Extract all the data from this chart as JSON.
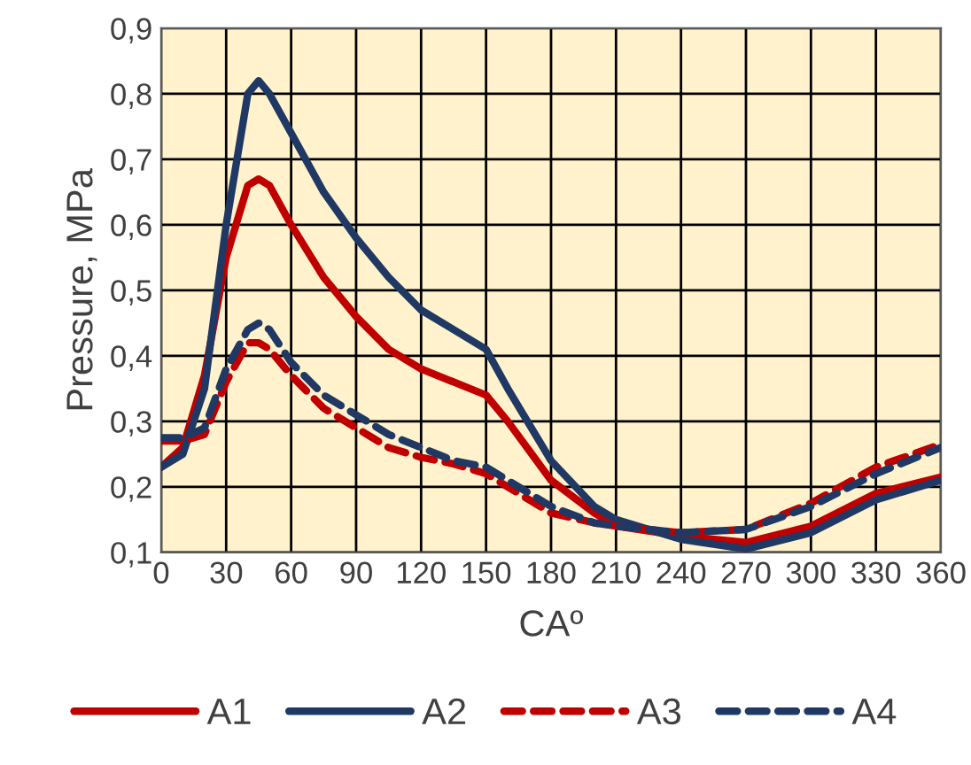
{
  "chart_data": {
    "type": "line",
    "xlabel": "CAº",
    "ylabel": "Pressure, MPa",
    "xlim": [
      0,
      360
    ],
    "xticks": [
      0,
      30,
      60,
      90,
      120,
      150,
      180,
      210,
      240,
      270,
      300,
      330,
      360
    ],
    "ylim": [
      0.1,
      0.9
    ],
    "yticks": [
      {
        "value": 0.1,
        "label": "0,1"
      },
      {
        "value": 0.2,
        "label": "0,2"
      },
      {
        "value": 0.3,
        "label": "0,3"
      },
      {
        "value": 0.4,
        "label": "0,4"
      },
      {
        "value": 0.5,
        "label": "0,5"
      },
      {
        "value": 0.6,
        "label": "0,6"
      },
      {
        "value": 0.7,
        "label": "0,7"
      },
      {
        "value": 0.8,
        "label": "0,8"
      },
      {
        "value": 0.9,
        "label": "0,9"
      }
    ],
    "x": [
      0,
      10,
      20,
      30,
      40,
      45,
      50,
      60,
      75,
      90,
      105,
      120,
      135,
      150,
      160,
      180,
      200,
      210,
      240,
      270,
      300,
      330,
      360
    ],
    "grid": true,
    "legend": "bottom",
    "marker": "none",
    "series": [
      {
        "name": "A1",
        "color": "#c00000",
        "line_style": "solid",
        "values": [
          0.23,
          0.26,
          0.37,
          0.55,
          0.66,
          0.67,
          0.66,
          0.6,
          0.52,
          0.46,
          0.41,
          0.38,
          0.36,
          0.34,
          0.3,
          0.21,
          0.16,
          0.14,
          0.125,
          0.115,
          0.14,
          0.19,
          0.215
        ]
      },
      {
        "name": "A2",
        "color": "#203864",
        "line_style": "solid",
        "values": [
          0.23,
          0.25,
          0.35,
          0.6,
          0.8,
          0.82,
          0.8,
          0.74,
          0.65,
          0.58,
          0.52,
          0.47,
          0.44,
          0.41,
          0.35,
          0.24,
          0.17,
          0.15,
          0.12,
          0.105,
          0.13,
          0.18,
          0.21
        ]
      },
      {
        "name": "A3",
        "color": "#c00000",
        "line_style": "dashed",
        "values": [
          0.27,
          0.27,
          0.28,
          0.36,
          0.42,
          0.42,
          0.41,
          0.37,
          0.32,
          0.29,
          0.26,
          0.245,
          0.235,
          0.22,
          0.2,
          0.16,
          0.145,
          0.14,
          0.13,
          0.135,
          0.175,
          0.23,
          0.265
        ]
      },
      {
        "name": "A4",
        "color": "#203864",
        "line_style": "dashed",
        "values": [
          0.275,
          0.275,
          0.29,
          0.38,
          0.44,
          0.45,
          0.44,
          0.39,
          0.34,
          0.31,
          0.28,
          0.26,
          0.24,
          0.23,
          0.21,
          0.17,
          0.145,
          0.14,
          0.13,
          0.135,
          0.17,
          0.22,
          0.26
        ]
      }
    ]
  }
}
